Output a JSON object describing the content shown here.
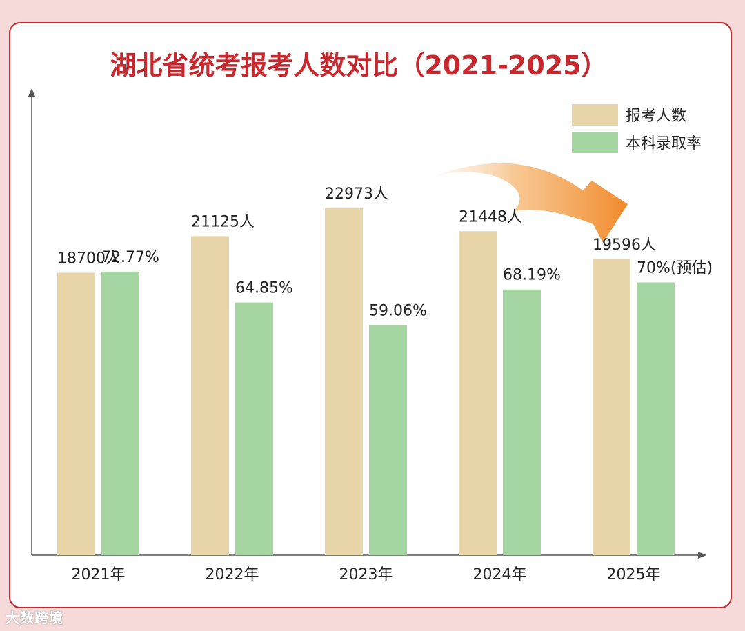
{
  "chart_data": {
    "type": "bar",
    "title": "湖北省统考报考人数对比（2021-2025）",
    "categories": [
      "2021年",
      "2022年",
      "2023年",
      "2024年",
      "2025年"
    ],
    "series": [
      {
        "name": "报考人数",
        "color": "#e8d5a9",
        "values": [
          18700,
          21125,
          22973,
          21448,
          19596
        ],
        "labels": [
          "18700人",
          "21125人",
          "22973人",
          "21448人",
          "19596人"
        ],
        "ylim": [
          0,
          25800
        ]
      },
      {
        "name": "本科录取率",
        "color": "#a5d5a0",
        "values": [
          72.77,
          64.85,
          59.06,
          68.19,
          70
        ],
        "labels": [
          "72.77%",
          "64.85%",
          "59.06%",
          "68.19%",
          "70%(预估)"
        ],
        "ylim": [
          0,
          100
        ]
      }
    ],
    "xlabel": "",
    "ylabel": "",
    "legend_position": "top-right",
    "annotation": "trend arrow pointing down from 2023 toward 2025"
  },
  "colors": {
    "background": "#f6d9d9",
    "frame": "#c8282d",
    "title": "#c8282d",
    "axis": "#555555",
    "text": "#222222"
  },
  "watermark": "大数跨境"
}
